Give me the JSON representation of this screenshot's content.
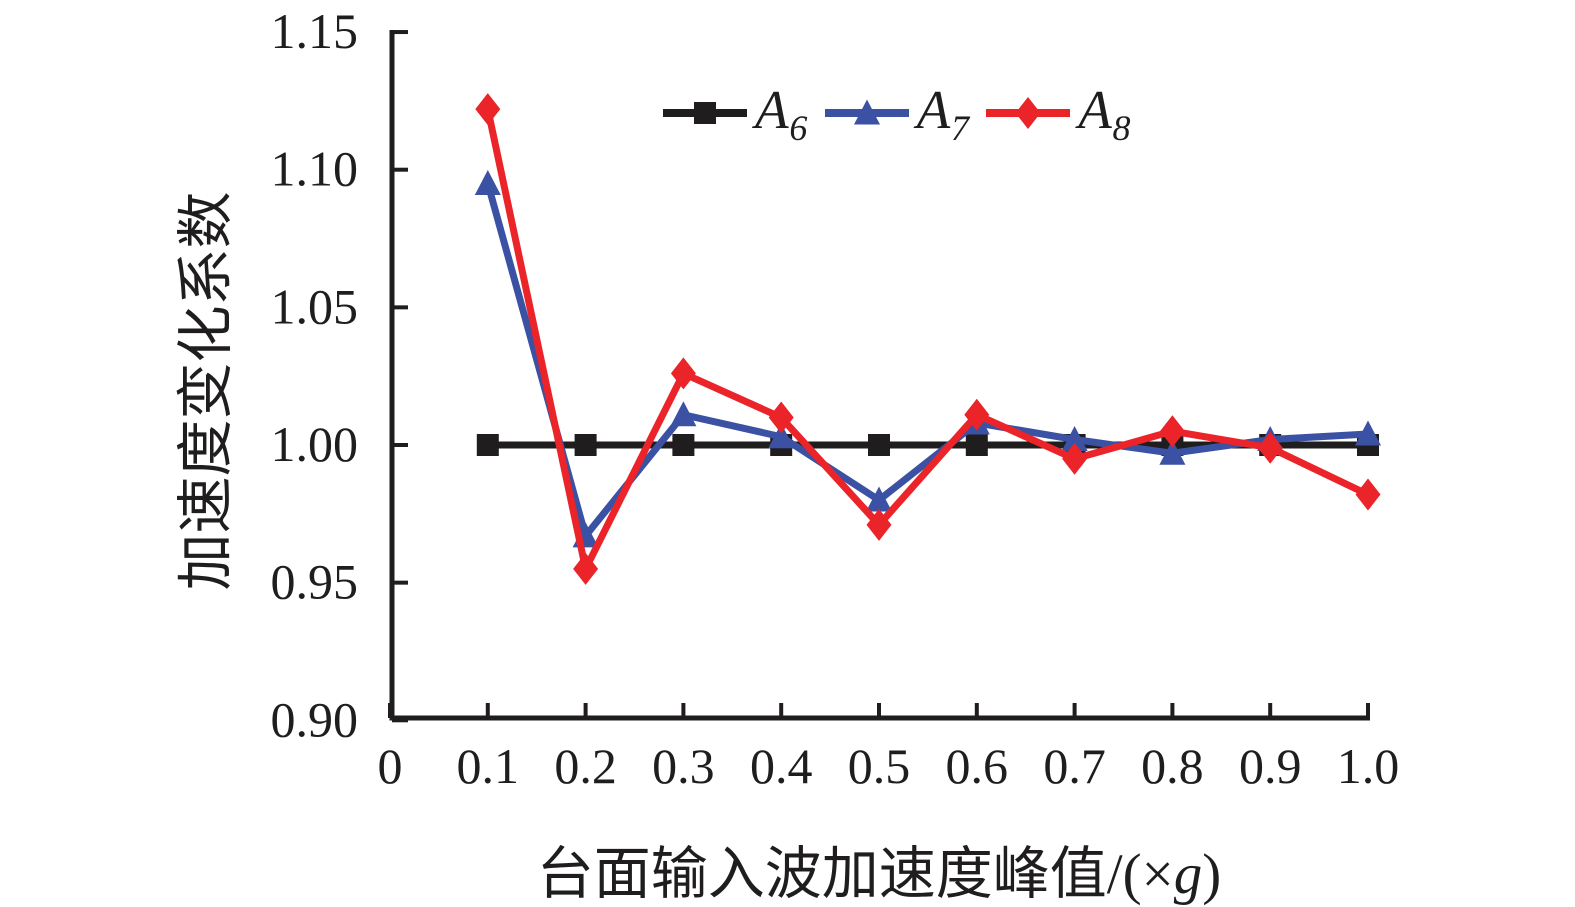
{
  "chart_data": {
    "type": "line",
    "title": "",
    "xlabel": {
      "before": "台面输入波加速度峰值/(×",
      "italic": "g",
      "after": ")"
    },
    "ylabel": "加速度变化系数",
    "x": [
      0.1,
      0.2,
      0.3,
      0.4,
      0.5,
      0.6,
      0.7,
      0.8,
      0.9,
      1.0
    ],
    "x_ticks": [
      "0",
      "0.1",
      "0.2",
      "0.3",
      "0.4",
      "0.5",
      "0.6",
      "0.7",
      "0.8",
      "0.9",
      "1.0"
    ],
    "y_ticks": [
      "0.90",
      "0.95",
      "1.00",
      "1.05",
      "1.10",
      "1.15"
    ],
    "xlim": [
      0,
      1.0
    ],
    "ylim": [
      0.9,
      1.15
    ],
    "grid": false,
    "legend_position": "top-center-inside",
    "axis_color": "#1f1d1e",
    "series": [
      {
        "name": "A6",
        "label": "A",
        "subscript": "6",
        "color": "#1f1d1e",
        "marker": "square",
        "values": [
          1.0,
          1.0,
          1.0,
          1.0,
          1.0,
          1.0,
          1.0,
          1.0,
          1.0,
          1.0
        ]
      },
      {
        "name": "A7",
        "label": "A",
        "subscript": "7",
        "color": "#3b51a3",
        "marker": "triangle",
        "values": [
          1.095,
          0.967,
          1.011,
          1.003,
          0.98,
          1.008,
          1.002,
          0.997,
          1.002,
          1.004
        ]
      },
      {
        "name": "A8",
        "label": "A",
        "subscript": "8",
        "color": "#ea2429",
        "marker": "diamond",
        "values": [
          1.122,
          0.955,
          1.026,
          1.01,
          0.971,
          1.011,
          0.995,
          1.005,
          0.999,
          0.982
        ]
      }
    ]
  }
}
